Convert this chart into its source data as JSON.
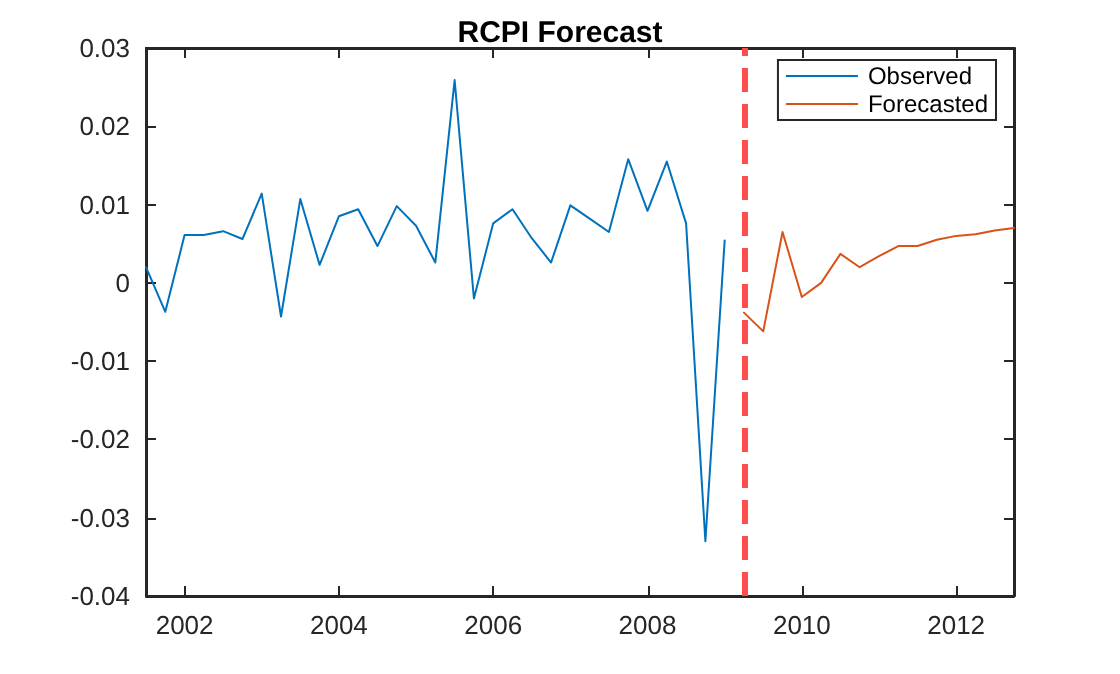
{
  "chart_data": {
    "type": "line",
    "title": "RCPI Forecast",
    "series": [
      {
        "name": "Observed",
        "color": "#0072bd",
        "x": [
          2001.5,
          2001.75,
          2002,
          2002.25,
          2002.5,
          2002.75,
          2003,
          2003.25,
          2003.5,
          2003.75,
          2004,
          2004.25,
          2004.5,
          2004.75,
          2005,
          2005.25,
          2005.5,
          2005.75,
          2006,
          2006.25,
          2006.5,
          2006.75,
          2007,
          2007.25,
          2007.5,
          2007.75,
          2008,
          2008.25,
          2008.5,
          2008.75,
          2009
        ],
        "values": [
          0.002,
          -0.0037,
          0.0061,
          0.0061,
          0.0066,
          0.0056,
          0.0114,
          -0.0043,
          0.0107,
          0.0023,
          0.0085,
          0.0094,
          0.0047,
          0.0098,
          0.0073,
          0.0026,
          0.0259,
          -0.002,
          0.0076,
          0.0094,
          0.0057,
          0.0026,
          0.0099,
          0.0082,
          0.0065,
          0.0158,
          0.0092,
          0.0155,
          0.0076,
          -0.033,
          0.0054
        ]
      },
      {
        "name": "Forecasted",
        "color": "#d95319",
        "x": [
          2009.25,
          2009.5,
          2009.75,
          2010,
          2010.25,
          2010.5,
          2010.75,
          2011,
          2011.25,
          2011.5,
          2011.75,
          2012,
          2012.25,
          2012.5,
          2012.75
        ],
        "values": [
          -0.0038,
          -0.0062,
          0.0065,
          -0.0018,
          0.0,
          0.0037,
          0.002,
          0.0034,
          0.0047,
          0.0047,
          0.0055,
          0.006,
          0.0062,
          0.0067,
          0.007
        ]
      }
    ],
    "xlim": [
      2001.5,
      2012.75
    ],
    "xticks": [
      2002,
      2004,
      2006,
      2008,
      2010,
      2012
    ],
    "ylim": [
      -0.04,
      0.03
    ],
    "yticks": [
      -0.04,
      -0.03,
      -0.02,
      -0.01,
      0,
      0.01,
      0.02,
      0.03
    ],
    "ref_lines": [
      {
        "axis": "x",
        "value": 2009.25,
        "label": null,
        "color": "#ff4d4d",
        "line_style": "dashed"
      }
    ],
    "grid": false,
    "legend": "top right",
    "marker": "none",
    "line_style": "solid"
  }
}
